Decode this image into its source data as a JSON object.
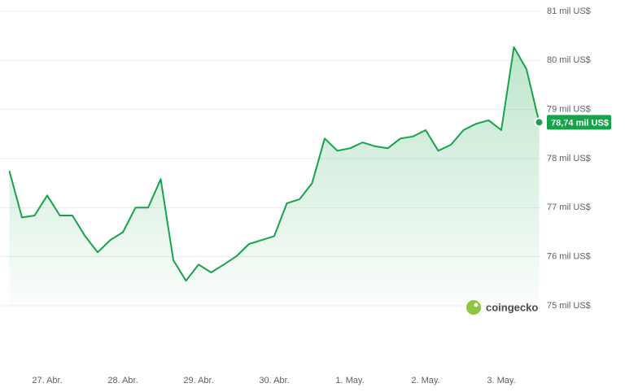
{
  "chart_data": {
    "type": "line",
    "categories": [
      null,
      null,
      null,
      "27. Abr.",
      null,
      null,
      null,
      null,
      null,
      "28. Abr.",
      null,
      null,
      null,
      null,
      null,
      "29. Abr.",
      null,
      null,
      null,
      null,
      null,
      "30. Abr.",
      null,
      null,
      null,
      null,
      null,
      "1. May.",
      null,
      null,
      null,
      null,
      null,
      "2. May.",
      null,
      null,
      null,
      null,
      null,
      "3. May.",
      null,
      null,
      null
    ],
    "values": [
      77.75,
      76.8,
      76.84,
      77.25,
      76.84,
      76.84,
      76.42,
      76.09,
      76.34,
      76.5,
      77.0,
      77.0,
      77.58,
      75.93,
      75.51,
      75.84,
      75.68,
      75.84,
      76.01,
      76.26,
      76.34,
      76.42,
      77.09,
      77.17,
      77.5,
      78.41,
      78.16,
      78.21,
      78.33,
      78.25,
      78.21,
      78.41,
      78.45,
      78.58,
      78.16,
      78.28,
      78.58,
      78.71,
      78.78,
      78.58,
      80.27,
      79.82,
      78.74
    ],
    "value_labels": [
      null,
      null,
      null,
      null,
      null,
      null,
      null,
      null,
      null,
      null,
      null,
      null,
      null,
      null,
      null,
      null,
      null,
      null,
      null,
      null,
      null,
      null,
      null,
      null,
      null,
      null,
      null,
      null,
      null,
      null,
      null,
      null,
      null,
      null,
      null,
      null,
      null,
      null,
      null,
      null,
      null,
      null,
      "78,74 mil US$"
    ],
    "color": "#16a34a",
    "ylim": [
      75,
      81
    ],
    "yticks": [
      {
        "value": 75,
        "label": "75 mil US$"
      },
      {
        "value": 76,
        "label": "76 mil US$"
      },
      {
        "value": 77,
        "label": "77 mil US$"
      },
      {
        "value": 78,
        "label": "78 mil US$"
      },
      {
        "value": 79,
        "label": "79 mil US$"
      },
      {
        "value": 80,
        "label": "80 mil US$"
      },
      {
        "value": 81,
        "label": "81 mil US$"
      }
    ],
    "grid": true,
    "watermark": "coingecko"
  }
}
